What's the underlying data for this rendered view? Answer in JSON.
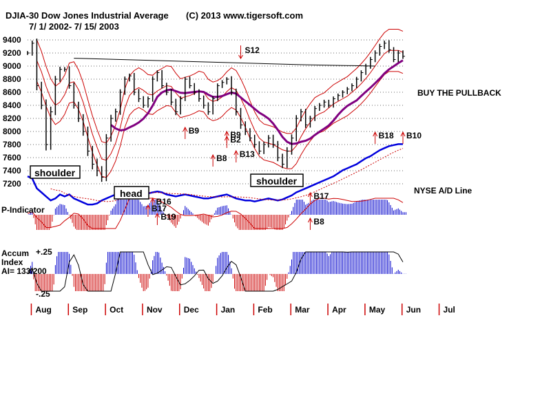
{
  "header": {
    "title": "DJIA-30   Dow Jones Industrial Average",
    "copyright": "(C) 2013 www.tigersoft.com",
    "date_range": "7/ 1/ 2002-  7/ 15/ 2003"
  },
  "annotations": {
    "shoulder_left": "shoulder",
    "head": "head",
    "shoulder_right": "shoulder",
    "buy_note": "BUY THE PULLBACK"
  },
  "indicators": {
    "ad_line_label": "NYSE A/D Line",
    "p_indicator_label": "P-Indicator",
    "accum_label_1": "Accum",
    "accum_label_2": "Index",
    "accum_label_3": "AI= 133/200",
    "accum_upper": "+.25",
    "accum_lower": "-.25"
  },
  "colors": {
    "price": "#000000",
    "band": "#cc0000",
    "ma50": "#800080",
    "ad_line": "#0000dd",
    "positive": "#0000cc",
    "negative": "#cc0000",
    "grid": "#666666"
  },
  "chart_data": {
    "type": "line",
    "title": "DJIA-30 Dow Jones Industrial Average",
    "xlabel": "",
    "ylabel": "",
    "ylim": [
      7200,
      9500
    ],
    "y_ticks": [
      9400,
      9200,
      9000,
      8800,
      8600,
      8400,
      8200,
      8000,
      7800,
      7600,
      7400,
      7200
    ],
    "y_tick_labels": [
      "9400",
      "9200",
      "9000",
      "8800",
      "8600",
      "8400",
      "8200",
      "8000",
      "7800",
      "7600",
      "7400",
      "7200"
    ],
    "months": [
      "Aug",
      "Sep",
      "Oct",
      "Nov",
      "Dec",
      "Jan",
      "Feb",
      "Mar",
      "Apr",
      "May",
      "Jun",
      "Jul"
    ],
    "month_index": [
      2,
      10,
      18,
      26,
      34,
      42,
      50,
      58,
      66,
      74,
      82,
      90
    ],
    "series": [
      {
        "name": "DJIA close (weekly approx.)",
        "values": [
          9200,
          9350,
          8700,
          8400,
          7800,
          8300,
          8800,
          8950,
          8950,
          8700,
          8400,
          8200,
          8000,
          7700,
          7500,
          7400,
          7300,
          7900,
          8200,
          8300,
          8600,
          8800,
          8850,
          8600,
          8500,
          8400,
          8500,
          8800,
          8900,
          8700,
          8600,
          8450,
          8300,
          8500,
          8800,
          8700,
          8600,
          8500,
          8400,
          8300,
          8500,
          8700,
          8750,
          8800,
          8600,
          8300,
          8100,
          8000,
          7900,
          7800,
          7700,
          7800,
          7900,
          7800,
          7600,
          7500,
          7700,
          7900,
          8200,
          8300,
          8100,
          8200,
          8350,
          8400,
          8450,
          8400,
          8500,
          8550,
          8600,
          8650,
          8700,
          8800,
          8900,
          9000,
          9100,
          9200,
          9300,
          9350,
          9250,
          9100,
          9200,
          9150
        ]
      },
      {
        "name": "NYSE A/D Line (relative)",
        "values": [
          30,
          28,
          18,
          14,
          10,
          6,
          8,
          12,
          10,
          12,
          8,
          6,
          4,
          2,
          2,
          3,
          6,
          8,
          10,
          12,
          14,
          16,
          15,
          14,
          12,
          12,
          13,
          14,
          15,
          14,
          12,
          11,
          10,
          11,
          12,
          11,
          10,
          9,
          8,
          8,
          9,
          10,
          11,
          12,
          10,
          8,
          7,
          6,
          6,
          5,
          6,
          7,
          8,
          7,
          6,
          7,
          9,
          11,
          14,
          16,
          18,
          20,
          22,
          24,
          26,
          28,
          30,
          33,
          36,
          38,
          40,
          42,
          45,
          48,
          50,
          53,
          56,
          58,
          60,
          61,
          62,
          62
        ]
      }
    ],
    "signals": [
      {
        "label": "S12",
        "type": "sell",
        "index": 46
      },
      {
        "label": "B9",
        "type": "buy",
        "index": 34
      },
      {
        "label": "B9",
        "type": "buy",
        "index": 43
      },
      {
        "label": "B2",
        "type": "buy",
        "index": 43
      },
      {
        "label": "B13",
        "type": "buy",
        "index": 45
      },
      {
        "label": "B8",
        "type": "buy",
        "index": 40
      },
      {
        "label": "B16",
        "type": "buy",
        "index": 27
      },
      {
        "label": "B17",
        "type": "buy",
        "index": 26
      },
      {
        "label": "B19",
        "type": "buy",
        "index": 28
      },
      {
        "label": "B17",
        "type": "buy",
        "index": 61
      },
      {
        "label": "B8",
        "type": "buy",
        "index": 61
      },
      {
        "label": "B18",
        "type": "buy",
        "index": 75
      },
      {
        "label": "B10",
        "type": "buy",
        "index": 81
      }
    ],
    "legend": "none",
    "grid": true
  }
}
